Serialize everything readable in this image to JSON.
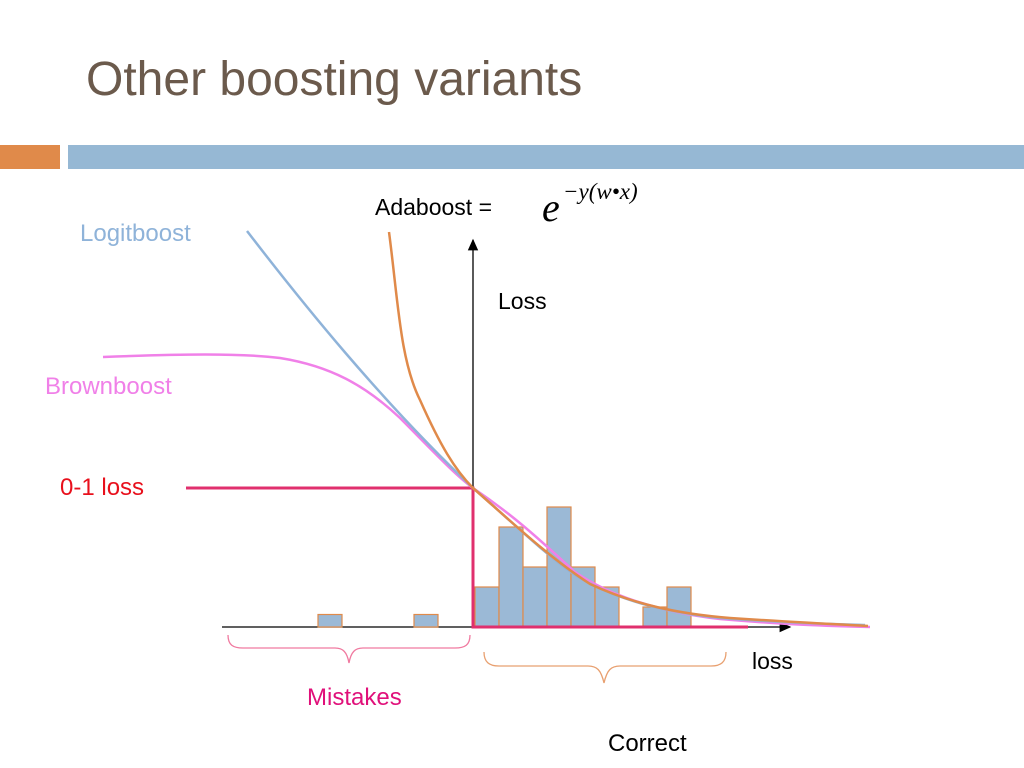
{
  "slide": {
    "title": "Other boosting variants"
  },
  "labels": {
    "logitboost": "Logitboost",
    "brownboost": "Brownboost",
    "zero_one_loss": "0-1 loss",
    "adaboost_prefix": "Adaboost =",
    "formula_base": "e",
    "formula_exponent": "−y(w•x)",
    "loss_axis": "Loss",
    "x_axis": "loss",
    "mistakes": "Mistakes",
    "correct": "Correct"
  },
  "colors": {
    "title": "#6b5a4c",
    "accent_orange": "#e08a4a",
    "accent_blue": "#96b8d4",
    "logitboost": "#8fb3d9",
    "brownboost": "#f080e8",
    "zero_one_loss_label": "#e8101c",
    "zero_one_loss_line": "#e0306e",
    "adaboost": "#e08a4a",
    "histogram_fill": "#9bb9d6",
    "mistakes_label": "#e0107a",
    "mistakes_brace": "#f07aa0",
    "correct_brace": "#e8a070"
  },
  "histogram": {
    "mistake_bins": [
      1,
      1
    ],
    "correct_bins": [
      2,
      5,
      3,
      6,
      3,
      2,
      0,
      1,
      2
    ]
  }
}
